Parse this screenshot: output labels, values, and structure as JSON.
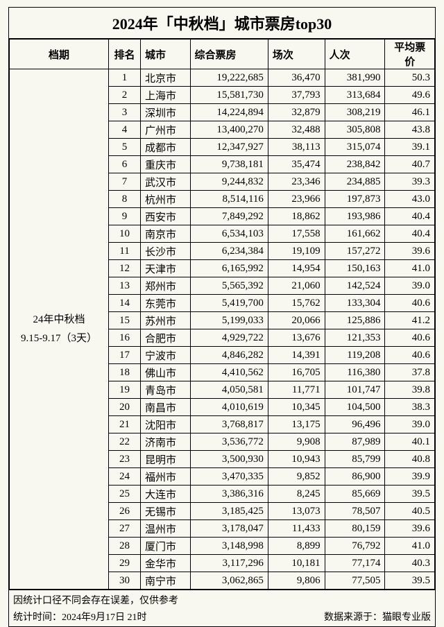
{
  "title": "2024年「中秋档」城市票房top30",
  "headers": {
    "period": "档期",
    "rank": "排名",
    "city": "城市",
    "revenue": "综合票房",
    "shows": "场次",
    "attendance": "人次",
    "avgprice": "平均票价"
  },
  "period_label_line1": "24年中秋档",
  "period_label_line2": "9.15-9.17（3天）",
  "rows": [
    {
      "rank": "1",
      "city": "北京市",
      "rev": "19,222,685",
      "show": "36,470",
      "att": "381,990",
      "price": "50.3"
    },
    {
      "rank": "2",
      "city": "上海市",
      "rev": "15,581,730",
      "show": "37,793",
      "att": "313,684",
      "price": "49.6"
    },
    {
      "rank": "3",
      "city": "深圳市",
      "rev": "14,224,894",
      "show": "32,879",
      "att": "308,219",
      "price": "46.1"
    },
    {
      "rank": "4",
      "city": "广州市",
      "rev": "13,400,270",
      "show": "32,488",
      "att": "305,808",
      "price": "43.8"
    },
    {
      "rank": "5",
      "city": "成都市",
      "rev": "12,347,927",
      "show": "38,113",
      "att": "315,074",
      "price": "39.1"
    },
    {
      "rank": "6",
      "city": "重庆市",
      "rev": "9,738,181",
      "show": "35,474",
      "att": "238,842",
      "price": "40.7"
    },
    {
      "rank": "7",
      "city": "武汉市",
      "rev": "9,244,832",
      "show": "23,346",
      "att": "234,885",
      "price": "39.3"
    },
    {
      "rank": "8",
      "city": "杭州市",
      "rev": "8,514,116",
      "show": "23,966",
      "att": "197,873",
      "price": "43.0"
    },
    {
      "rank": "9",
      "city": "西安市",
      "rev": "7,849,292",
      "show": "18,862",
      "att": "193,986",
      "price": "40.4"
    },
    {
      "rank": "10",
      "city": "南京市",
      "rev": "6,534,103",
      "show": "17,558",
      "att": "161,662",
      "price": "40.4"
    },
    {
      "rank": "11",
      "city": "长沙市",
      "rev": "6,234,384",
      "show": "19,109",
      "att": "157,272",
      "price": "39.6"
    },
    {
      "rank": "12",
      "city": "天津市",
      "rev": "6,165,992",
      "show": "14,954",
      "att": "150,163",
      "price": "41.0"
    },
    {
      "rank": "13",
      "city": "郑州市",
      "rev": "5,565,392",
      "show": "21,060",
      "att": "142,524",
      "price": "39.0"
    },
    {
      "rank": "14",
      "city": "东莞市",
      "rev": "5,419,700",
      "show": "15,762",
      "att": "133,304",
      "price": "40.6"
    },
    {
      "rank": "15",
      "city": "苏州市",
      "rev": "5,199,033",
      "show": "20,066",
      "att": "125,886",
      "price": "41.2"
    },
    {
      "rank": "16",
      "city": "合肥市",
      "rev": "4,929,722",
      "show": "13,676",
      "att": "121,353",
      "price": "40.6"
    },
    {
      "rank": "17",
      "city": "宁波市",
      "rev": "4,846,282",
      "show": "14,391",
      "att": "119,208",
      "price": "40.6"
    },
    {
      "rank": "18",
      "city": "佛山市",
      "rev": "4,410,562",
      "show": "16,705",
      "att": "116,380",
      "price": "37.8"
    },
    {
      "rank": "19",
      "city": "青岛市",
      "rev": "4,050,581",
      "show": "11,771",
      "att": "101,747",
      "price": "39.8"
    },
    {
      "rank": "20",
      "city": "南昌市",
      "rev": "4,010,619",
      "show": "10,345",
      "att": "104,500",
      "price": "38.3"
    },
    {
      "rank": "21",
      "city": "沈阳市",
      "rev": "3,768,817",
      "show": "13,175",
      "att": "96,496",
      "price": "39.0"
    },
    {
      "rank": "22",
      "city": "济南市",
      "rev": "3,536,772",
      "show": "9,908",
      "att": "87,989",
      "price": "40.1"
    },
    {
      "rank": "23",
      "city": "昆明市",
      "rev": "3,500,930",
      "show": "10,943",
      "att": "85,799",
      "price": "40.8"
    },
    {
      "rank": "24",
      "city": "福州市",
      "rev": "3,470,335",
      "show": "9,852",
      "att": "86,900",
      "price": "39.9"
    },
    {
      "rank": "25",
      "city": "大连市",
      "rev": "3,386,316",
      "show": "8,245",
      "att": "85,669",
      "price": "39.5"
    },
    {
      "rank": "26",
      "city": "无锡市",
      "rev": "3,185,425",
      "show": "13,073",
      "att": "78,507",
      "price": "40.5"
    },
    {
      "rank": "27",
      "city": "温州市",
      "rev": "3,178,047",
      "show": "11,433",
      "att": "80,159",
      "price": "39.6"
    },
    {
      "rank": "28",
      "city": "厦门市",
      "rev": "3,148,998",
      "show": "8,899",
      "att": "76,792",
      "price": "41.0"
    },
    {
      "rank": "29",
      "city": "金华市",
      "rev": "3,117,296",
      "show": "10,181",
      "att": "77,174",
      "price": "40.3"
    },
    {
      "rank": "30",
      "city": "南宁市",
      "rev": "3,062,865",
      "show": "9,806",
      "att": "77,505",
      "price": "39.5"
    }
  ],
  "footer_note": "因统计口径不同会存在误差，仅供参考",
  "footer_time": "统计时间：2024年9月17日 21时",
  "footer_source": "数据来源于：猫眼专业版"
}
